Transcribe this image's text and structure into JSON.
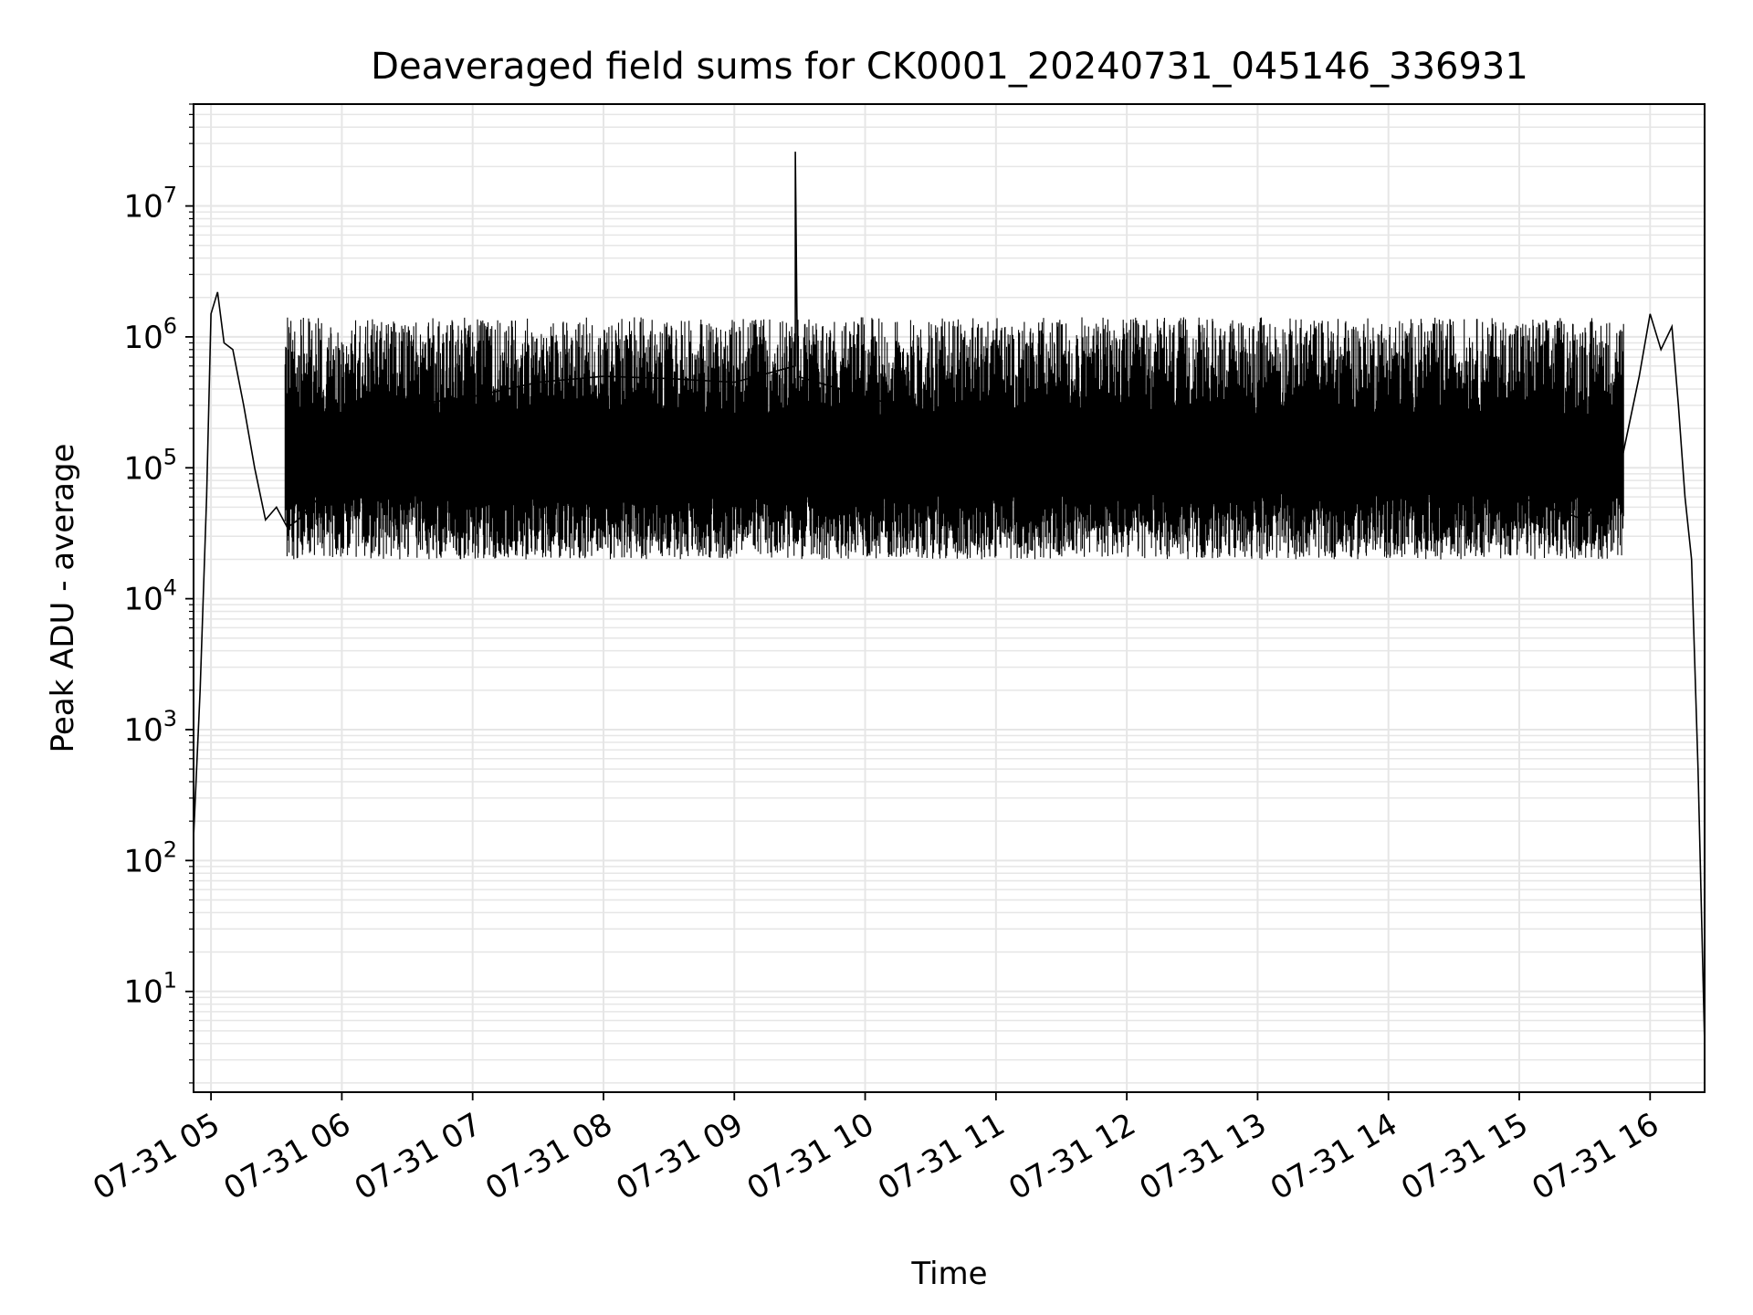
{
  "chart_data": {
    "type": "line",
    "title": "Deaveraged field sums for CK0001_20240731_045146_336931",
    "xlabel": "Time",
    "ylabel": "Peak ADU - average",
    "y_scale": "log",
    "ylim": [
      1.7,
      60000000
    ],
    "xlim": [
      "07-31 04:52",
      "07-31 16:25"
    ],
    "grid": true,
    "line_color": "#000000",
    "grid_color": "#e6e6e6",
    "x_tick_labels": [
      "07-31 05",
      "07-31 06",
      "07-31 07",
      "07-31 08",
      "07-31 09",
      "07-31 10",
      "07-31 11",
      "07-31 12",
      "07-31 13",
      "07-31 14",
      "07-31 15",
      "07-31 16"
    ],
    "y_tick_labels": [
      {
        "base": "10",
        "exp": "1",
        "value": 10
      },
      {
        "base": "10",
        "exp": "2",
        "value": 100
      },
      {
        "base": "10",
        "exp": "3",
        "value": 1000
      },
      {
        "base": "10",
        "exp": "4",
        "value": 10000
      },
      {
        "base": "10",
        "exp": "5",
        "value": 100000
      },
      {
        "base": "10",
        "exp": "6",
        "value": 1000000
      },
      {
        "base": "10",
        "exp": "7",
        "value": 10000000
      }
    ],
    "series": [
      {
        "x": [
          "07-31 04:52",
          "07-31 04:55",
          "07-31 04:58",
          "07-31 05:00",
          "07-31 05:03",
          "07-31 05:06",
          "07-31 05:10",
          "07-31 05:15",
          "07-31 05:20",
          "07-31 05:25",
          "07-31 05:30",
          "07-31 05:35",
          "07-31 05:40",
          "07-31 05:50",
          "07-31 06:00",
          "07-31 06:30",
          "07-31 07:00",
          "07-31 07:30",
          "07-31 08:00",
          "07-31 08:30",
          "07-31 09:00",
          "07-31 09:28",
          "07-31 09:28",
          "07-31 09:29",
          "07-31 10:00",
          "07-31 10:30",
          "07-31 11:00",
          "07-31 11:30",
          "07-31 12:00",
          "07-31 12:30",
          "07-31 13:00",
          "07-31 13:30",
          "07-31 14:00",
          "07-31 14:30",
          "07-31 15:00",
          "07-31 15:30",
          "07-31 15:45",
          "07-31 15:55",
          "07-31 16:00",
          "07-31 16:05",
          "07-31 16:10",
          "07-31 16:13",
          "07-31 16:16",
          "07-31 16:19",
          "07-31 16:22",
          "07-31 16:25"
        ],
        "y": [
          150,
          2000,
          60000,
          1500000,
          2200000,
          900000,
          800000,
          300000,
          100000,
          40000,
          50000,
          35000,
          40000,
          60000,
          250000,
          300000,
          350000,
          450000,
          500000,
          480000,
          450000,
          600000,
          26000000,
          500000,
          350000,
          250000,
          200000,
          150000,
          180000,
          150000,
          150000,
          120000,
          100000,
          90000,
          60000,
          40000,
          80000,
          500000,
          1500000,
          800000,
          1200000,
          300000,
          60000,
          20000,
          500,
          4
        ]
      }
    ]
  }
}
